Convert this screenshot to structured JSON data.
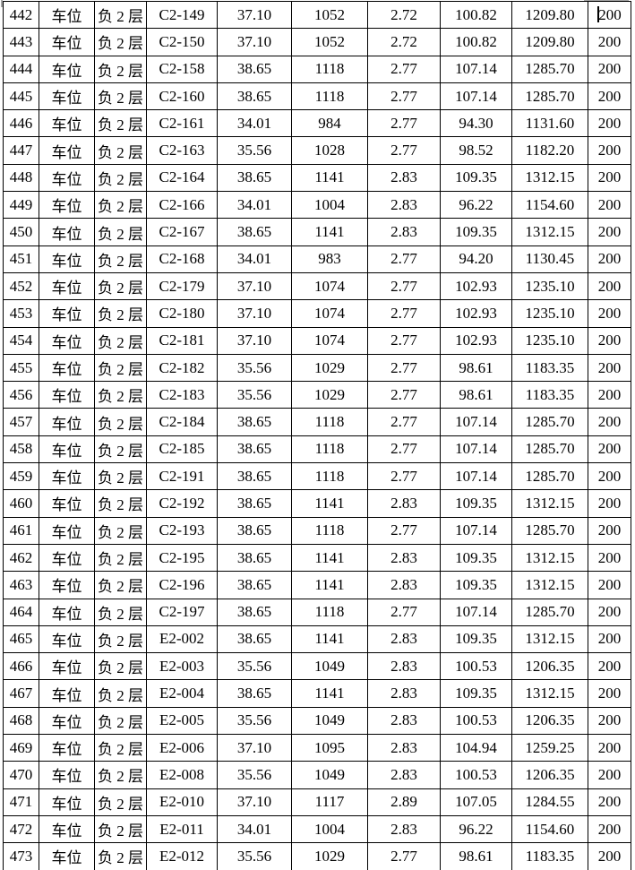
{
  "page": {
    "background_color": "#ffffff",
    "table_border_color": "#000000",
    "text_color": "#000000"
  },
  "cursor": {
    "row": 0,
    "col": 9
  },
  "table": {
    "rows": [
      [
        "442",
        "车位",
        "负 2 层",
        "C2-149",
        "37.10",
        "1052",
        "2.72",
        "100.82",
        "1209.80",
        "200"
      ],
      [
        "443",
        "车位",
        "负 2 层",
        "C2-150",
        "37.10",
        "1052",
        "2.72",
        "100.82",
        "1209.80",
        "200"
      ],
      [
        "444",
        "车位",
        "负 2 层",
        "C2-158",
        "38.65",
        "1118",
        "2.77",
        "107.14",
        "1285.70",
        "200"
      ],
      [
        "445",
        "车位",
        "负 2 层",
        "C2-160",
        "38.65",
        "1118",
        "2.77",
        "107.14",
        "1285.70",
        "200"
      ],
      [
        "446",
        "车位",
        "负 2 层",
        "C2-161",
        "34.01",
        "984",
        "2.77",
        "94.30",
        "1131.60",
        "200"
      ],
      [
        "447",
        "车位",
        "负 2 层",
        "C2-163",
        "35.56",
        "1028",
        "2.77",
        "98.52",
        "1182.20",
        "200"
      ],
      [
        "448",
        "车位",
        "负 2 层",
        "C2-164",
        "38.65",
        "1141",
        "2.83",
        "109.35",
        "1312.15",
        "200"
      ],
      [
        "449",
        "车位",
        "负 2 层",
        "C2-166",
        "34.01",
        "1004",
        "2.83",
        "96.22",
        "1154.60",
        "200"
      ],
      [
        "450",
        "车位",
        "负 2 层",
        "C2-167",
        "38.65",
        "1141",
        "2.83",
        "109.35",
        "1312.15",
        "200"
      ],
      [
        "451",
        "车位",
        "负 2 层",
        "C2-168",
        "34.01",
        "983",
        "2.77",
        "94.20",
        "1130.45",
        "200"
      ],
      [
        "452",
        "车位",
        "负 2 层",
        "C2-179",
        "37.10",
        "1074",
        "2.77",
        "102.93",
        "1235.10",
        "200"
      ],
      [
        "453",
        "车位",
        "负 2 层",
        "C2-180",
        "37.10",
        "1074",
        "2.77",
        "102.93",
        "1235.10",
        "200"
      ],
      [
        "454",
        "车位",
        "负 2 层",
        "C2-181",
        "37.10",
        "1074",
        "2.77",
        "102.93",
        "1235.10",
        "200"
      ],
      [
        "455",
        "车位",
        "负 2 层",
        "C2-182",
        "35.56",
        "1029",
        "2.77",
        "98.61",
        "1183.35",
        "200"
      ],
      [
        "456",
        "车位",
        "负 2 层",
        "C2-183",
        "35.56",
        "1029",
        "2.77",
        "98.61",
        "1183.35",
        "200"
      ],
      [
        "457",
        "车位",
        "负 2 层",
        "C2-184",
        "38.65",
        "1118",
        "2.77",
        "107.14",
        "1285.70",
        "200"
      ],
      [
        "458",
        "车位",
        "负 2 层",
        "C2-185",
        "38.65",
        "1118",
        "2.77",
        "107.14",
        "1285.70",
        "200"
      ],
      [
        "459",
        "车位",
        "负 2 层",
        "C2-191",
        "38.65",
        "1118",
        "2.77",
        "107.14",
        "1285.70",
        "200"
      ],
      [
        "460",
        "车位",
        "负 2 层",
        "C2-192",
        "38.65",
        "1141",
        "2.83",
        "109.35",
        "1312.15",
        "200"
      ],
      [
        "461",
        "车位",
        "负 2 层",
        "C2-193",
        "38.65",
        "1118",
        "2.77",
        "107.14",
        "1285.70",
        "200"
      ],
      [
        "462",
        "车位",
        "负 2 层",
        "C2-195",
        "38.65",
        "1141",
        "2.83",
        "109.35",
        "1312.15",
        "200"
      ],
      [
        "463",
        "车位",
        "负 2 层",
        "C2-196",
        "38.65",
        "1141",
        "2.83",
        "109.35",
        "1312.15",
        "200"
      ],
      [
        "464",
        "车位",
        "负 2 层",
        "C2-197",
        "38.65",
        "1118",
        "2.77",
        "107.14",
        "1285.70",
        "200"
      ],
      [
        "465",
        "车位",
        "负 2 层",
        "E2-002",
        "38.65",
        "1141",
        "2.83",
        "109.35",
        "1312.15",
        "200"
      ],
      [
        "466",
        "车位",
        "负 2 层",
        "E2-003",
        "35.56",
        "1049",
        "2.83",
        "100.53",
        "1206.35",
        "200"
      ],
      [
        "467",
        "车位",
        "负 2 层",
        "E2-004",
        "38.65",
        "1141",
        "2.83",
        "109.35",
        "1312.15",
        "200"
      ],
      [
        "468",
        "车位",
        "负 2 层",
        "E2-005",
        "35.56",
        "1049",
        "2.83",
        "100.53",
        "1206.35",
        "200"
      ],
      [
        "469",
        "车位",
        "负 2 层",
        "E2-006",
        "37.10",
        "1095",
        "2.83",
        "104.94",
        "1259.25",
        "200"
      ],
      [
        "470",
        "车位",
        "负 2 层",
        "E2-008",
        "35.56",
        "1049",
        "2.83",
        "100.53",
        "1206.35",
        "200"
      ],
      [
        "471",
        "车位",
        "负 2 层",
        "E2-010",
        "37.10",
        "1117",
        "2.89",
        "107.05",
        "1284.55",
        "200"
      ],
      [
        "472",
        "车位",
        "负 2 层",
        "E2-011",
        "34.01",
        "1004",
        "2.83",
        "96.22",
        "1154.60",
        "200"
      ],
      [
        "473",
        "车位",
        "负 2 层",
        "E2-012",
        "35.56",
        "1029",
        "2.77",
        "98.61",
        "1183.35",
        "200"
      ]
    ]
  }
}
